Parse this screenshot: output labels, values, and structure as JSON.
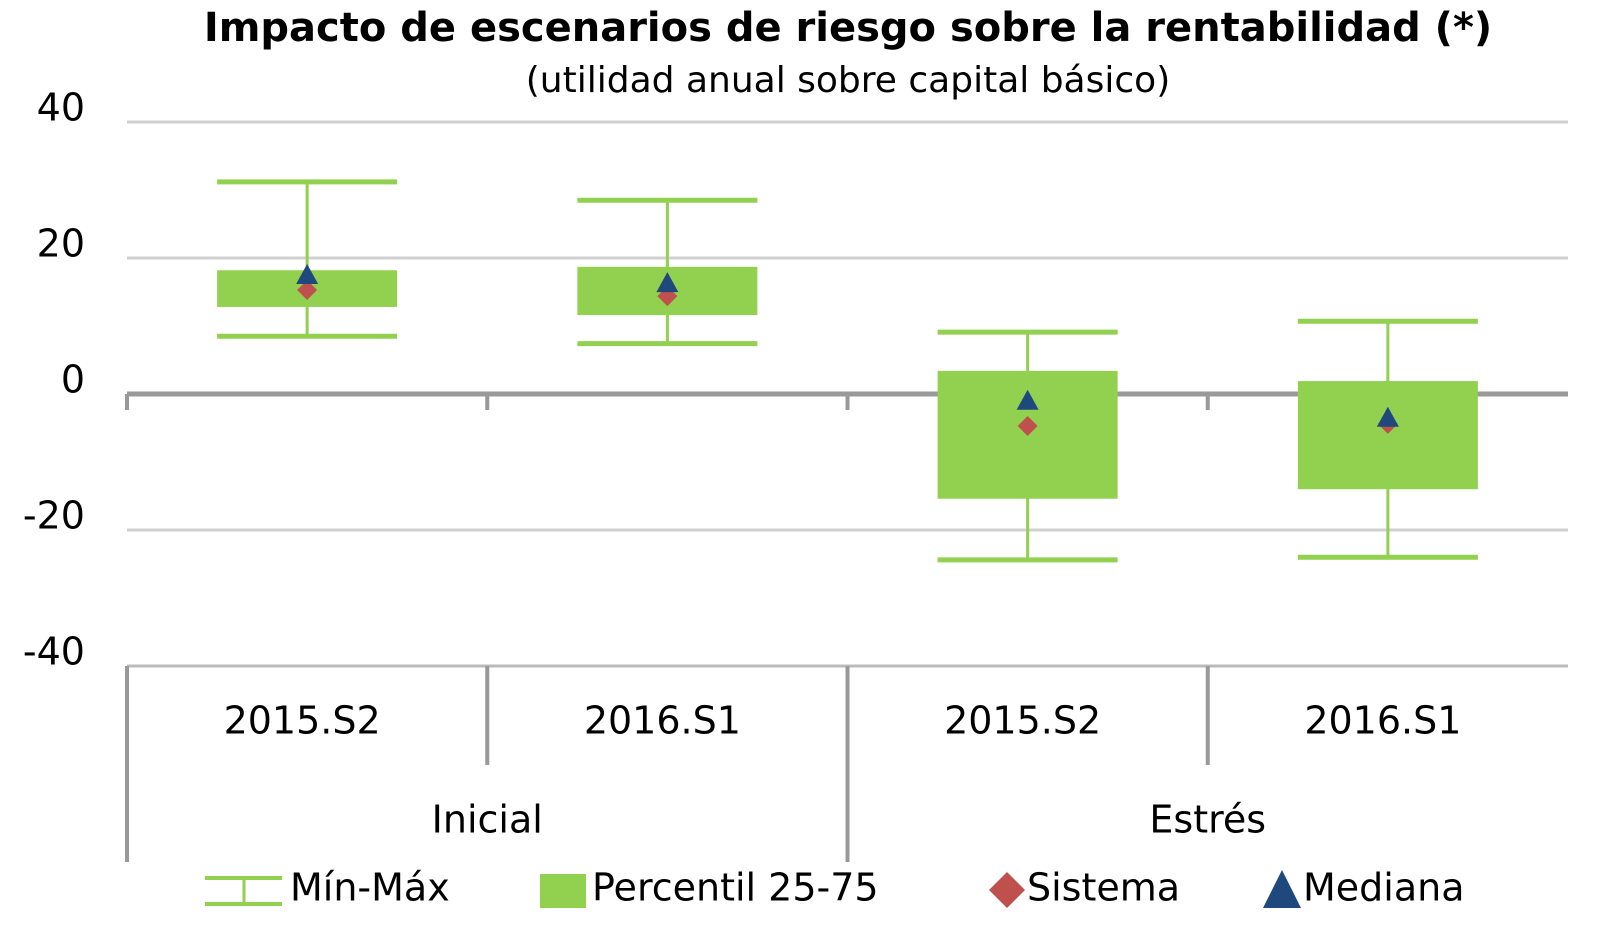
{
  "chart_data": {
    "type": "box",
    "title": "Impacto de escenarios de riesgo sobre la rentabilidad (*)",
    "subtitle": "(utilidad anual sobre capital básico)",
    "groups": [
      {
        "name": "Inicial",
        "categories": [
          "2015.S2",
          "2016.S1"
        ]
      },
      {
        "name": "Estrés",
        "categories": [
          "2015.S2",
          "2016.S1"
        ]
      }
    ],
    "series": [
      {
        "name": "Mín-Máx",
        "color": "#92d050",
        "min": [
          8.5,
          7.4,
          -24.4,
          -24.0
        ],
        "max": [
          31.2,
          28.5,
          9.1,
          10.7
        ]
      },
      {
        "name": "Percentil 25-75",
        "color": "#92d050",
        "q1": [
          12.8,
          11.6,
          -15.4,
          -14.0
        ],
        "q3": [
          18.2,
          18.7,
          3.4,
          1.9
        ]
      },
      {
        "name": "Sistema",
        "color": "#c0504d",
        "values": [
          15.3,
          14.4,
          -4.7,
          -4.4
        ]
      },
      {
        "name": "Mediana",
        "color": "#1f497d",
        "values": [
          17.5,
          16.3,
          -1.0,
          -3.5
        ]
      }
    ],
    "ylim": [
      -40,
      40
    ],
    "yticks": [
      -40,
      -20,
      0,
      20,
      40
    ],
    "grid": true
  }
}
